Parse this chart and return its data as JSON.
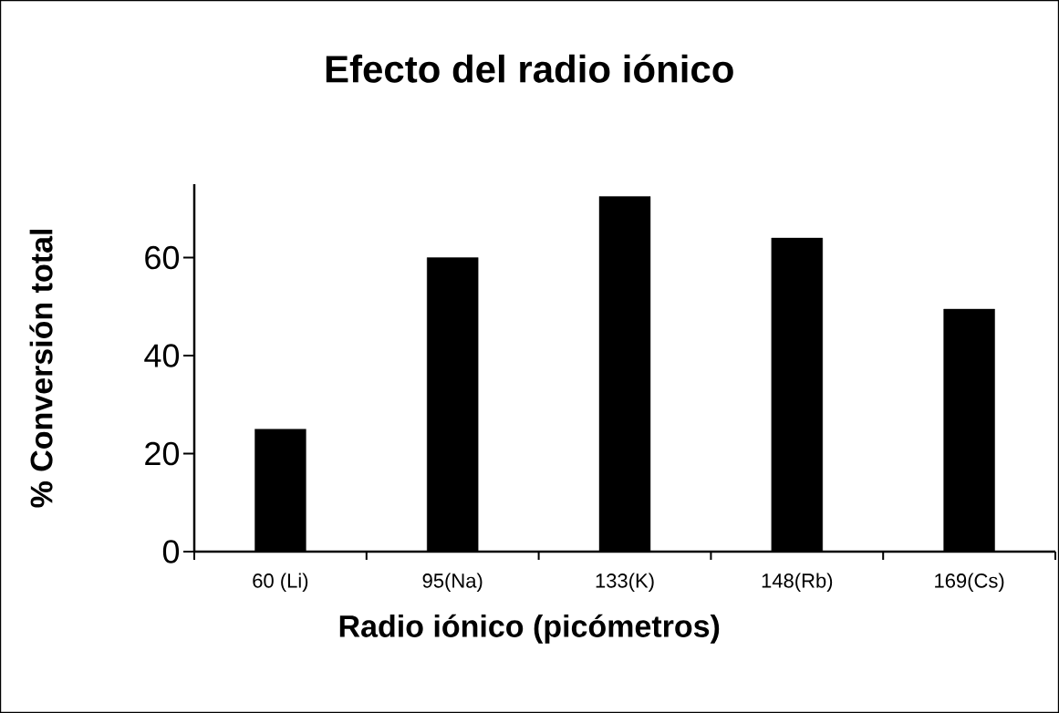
{
  "chart_data": {
    "type": "bar",
    "title": "Efecto del radio iónico",
    "xlabel": "Radio iónico (picómetros)",
    "ylabel": "% Conversión total",
    "categories": [
      "60 (Li)",
      "95(Na)",
      "133(K)",
      "148(Rb)",
      "169(Cs)"
    ],
    "values": [
      25,
      60,
      72.5,
      64,
      49.5
    ],
    "color": "#000000",
    "ylim": [
      0,
      75
    ],
    "yticks": [
      0,
      20,
      40,
      60
    ],
    "grid": false
  }
}
